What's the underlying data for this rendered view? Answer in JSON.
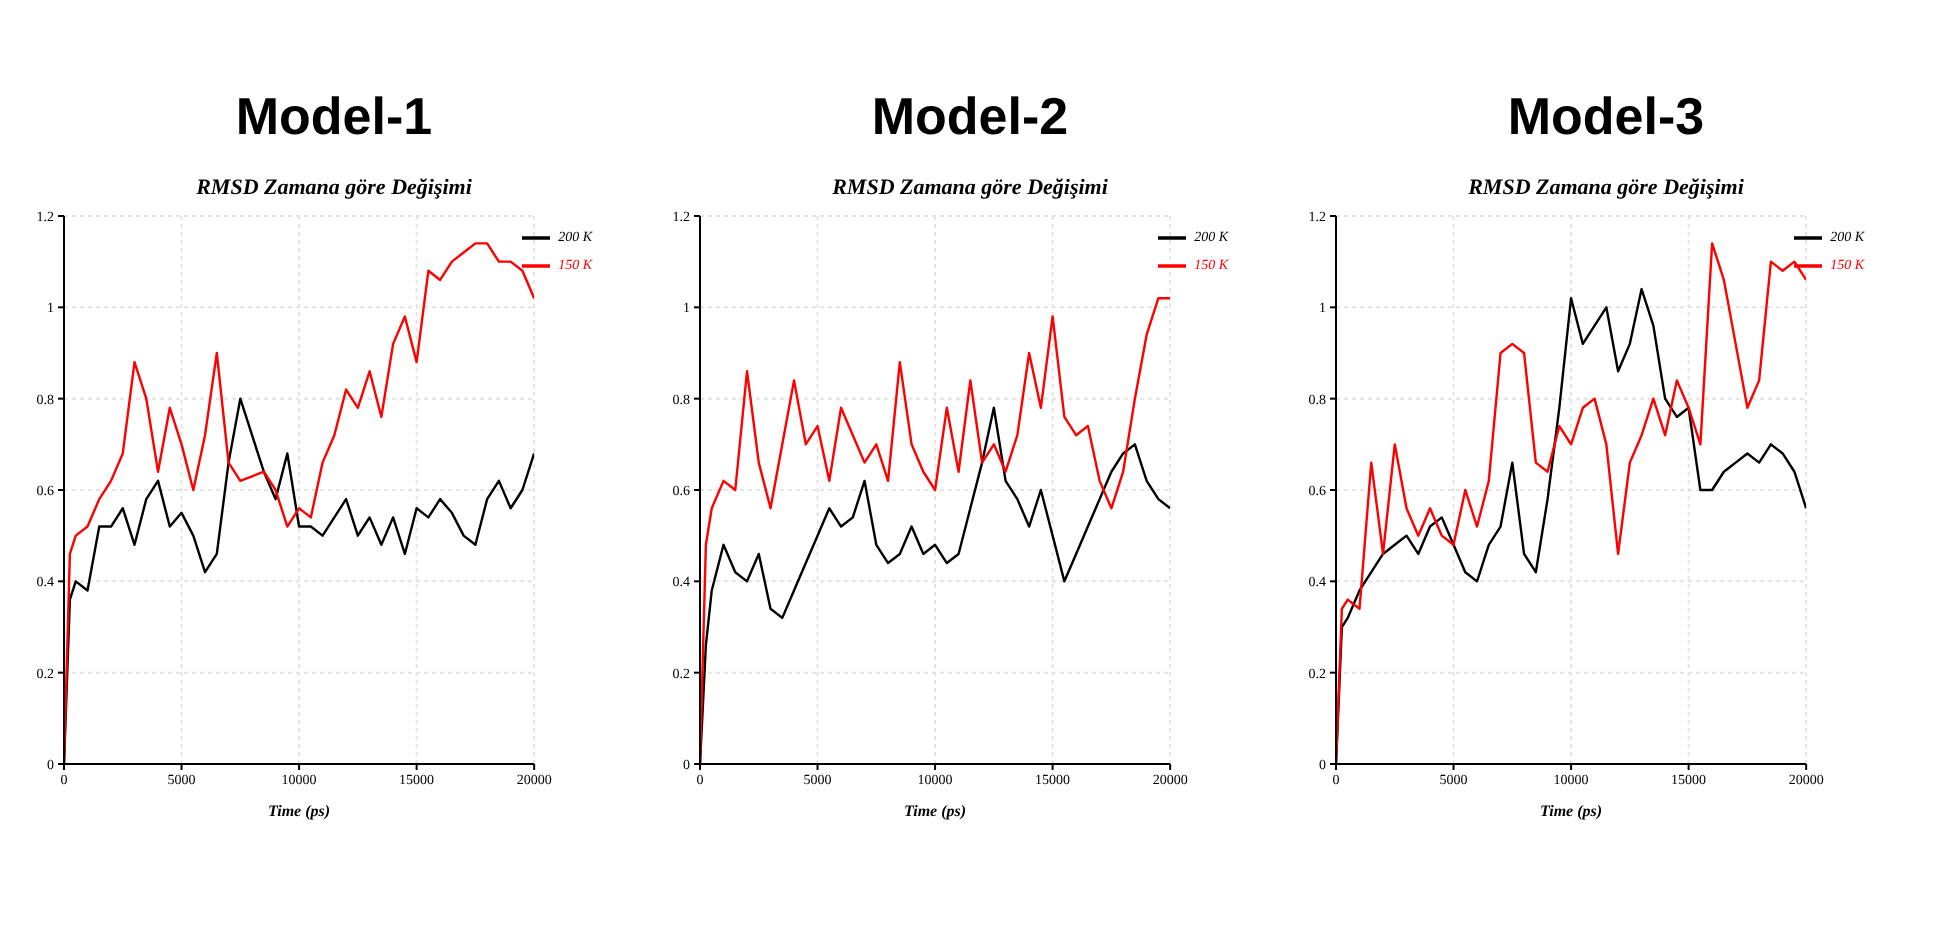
{
  "chart_data": [
    {
      "type": "line",
      "title": "Model-1",
      "subtitle": "RMSD Zamana göre Değişimi",
      "xlabel": "Time (ps)",
      "x": [
        0,
        250,
        500,
        1000,
        1500,
        2000,
        2500,
        3000,
        3500,
        4000,
        4500,
        5000,
        5500,
        6000,
        6500,
        7000,
        7500,
        8000,
        8500,
        9000,
        9500,
        10000,
        10500,
        11000,
        11500,
        12000,
        12500,
        13000,
        13500,
        14000,
        14500,
        15000,
        15500,
        16000,
        16500,
        17000,
        17500,
        18000,
        18500,
        19000,
        19500,
        20000
      ],
      "xlim": [
        0,
        20000
      ],
      "xticks": [
        0,
        5000,
        10000,
        15000,
        20000
      ],
      "ylim": [
        0,
        1.2
      ],
      "yticks": [
        0,
        0.2,
        0.4,
        0.6,
        0.8,
        1,
        1.2
      ],
      "grid": true,
      "legend": "top right",
      "marker": "none",
      "line_style": "solid",
      "series": [
        {
          "name": "200 K",
          "color": "#000000",
          "values": [
            0,
            0.36,
            0.4,
            0.38,
            0.52,
            0.52,
            0.56,
            0.48,
            0.58,
            0.62,
            0.52,
            0.55,
            0.5,
            0.42,
            0.46,
            0.66,
            0.8,
            0.72,
            0.64,
            0.58,
            0.68,
            0.52,
            0.52,
            0.5,
            0.54,
            0.58,
            0.5,
            0.54,
            0.48,
            0.54,
            0.46,
            0.56,
            0.54,
            0.58,
            0.55,
            0.5,
            0.48,
            0.58,
            0.62,
            0.56,
            0.6,
            0.68
          ]
        },
        {
          "name": "150 K",
          "color": "#ff0000",
          "values": [
            0,
            0.46,
            0.5,
            0.52,
            0.58,
            0.62,
            0.68,
            0.88,
            0.8,
            0.64,
            0.78,
            0.7,
            0.6,
            0.72,
            0.9,
            0.66,
            0.62,
            0.63,
            0.64,
            0.6,
            0.52,
            0.56,
            0.54,
            0.66,
            0.72,
            0.82,
            0.78,
            0.86,
            0.76,
            0.92,
            0.98,
            0.88,
            1.08,
            1.06,
            1.1,
            1.12,
            1.14,
            1.14,
            1.1,
            1.1,
            1.08,
            1.02
          ]
        }
      ]
    },
    {
      "type": "line",
      "title": "Model-2",
      "subtitle": "RMSD Zamana göre Değişimi",
      "xlabel": "Time (ps)",
      "x": [
        0,
        250,
        500,
        1000,
        1500,
        2000,
        2500,
        3000,
        3500,
        4000,
        4500,
        5000,
        5500,
        6000,
        6500,
        7000,
        7500,
        8000,
        8500,
        9000,
        9500,
        10000,
        10500,
        11000,
        11500,
        12000,
        12500,
        13000,
        13500,
        14000,
        14500,
        15000,
        15500,
        16000,
        16500,
        17000,
        17500,
        18000,
        18500,
        19000,
        19500,
        20000
      ],
      "xlim": [
        0,
        20000
      ],
      "xticks": [
        0,
        5000,
        10000,
        15000,
        20000
      ],
      "ylim": [
        0,
        1.2
      ],
      "yticks": [
        0,
        0.2,
        0.4,
        0.6,
        0.8,
        1,
        1.2
      ],
      "grid": true,
      "legend": "top right",
      "marker": "none",
      "line_style": "solid",
      "series": [
        {
          "name": "200 K",
          "color": "#000000",
          "values": [
            0,
            0.26,
            0.38,
            0.48,
            0.42,
            0.4,
            0.46,
            0.34,
            0.32,
            0.38,
            0.44,
            0.5,
            0.56,
            0.52,
            0.54,
            0.62,
            0.48,
            0.44,
            0.46,
            0.52,
            0.46,
            0.48,
            0.44,
            0.46,
            0.56,
            0.66,
            0.78,
            0.62,
            0.58,
            0.52,
            0.6,
            0.5,
            0.4,
            0.46,
            0.52,
            0.58,
            0.64,
            0.68,
            0.7,
            0.62,
            0.58,
            0.56
          ]
        },
        {
          "name": "150 K",
          "color": "#ff0000",
          "values": [
            0,
            0.48,
            0.56,
            0.62,
            0.6,
            0.86,
            0.66,
            0.56,
            0.7,
            0.84,
            0.7,
            0.74,
            0.62,
            0.78,
            0.72,
            0.66,
            0.7,
            0.62,
            0.88,
            0.7,
            0.64,
            0.6,
            0.78,
            0.64,
            0.84,
            0.66,
            0.7,
            0.64,
            0.72,
            0.9,
            0.78,
            0.98,
            0.76,
            0.72,
            0.74,
            0.62,
            0.56,
            0.64,
            0.8,
            0.94,
            1.02,
            1.02
          ]
        }
      ]
    },
    {
      "type": "line",
      "title": "Model-3",
      "subtitle": "RMSD Zamana göre Değişimi",
      "xlabel": "Time (ps)",
      "x": [
        0,
        250,
        500,
        1000,
        1500,
        2000,
        2500,
        3000,
        3500,
        4000,
        4500,
        5000,
        5500,
        6000,
        6500,
        7000,
        7500,
        8000,
        8500,
        9000,
        9500,
        10000,
        10500,
        11000,
        11500,
        12000,
        12500,
        13000,
        13500,
        14000,
        14500,
        15000,
        15500,
        16000,
        16500,
        17000,
        17500,
        18000,
        18500,
        19000,
        19500,
        20000
      ],
      "xlim": [
        0,
        20000
      ],
      "xticks": [
        0,
        5000,
        10000,
        15000,
        20000
      ],
      "ylim": [
        0,
        1.2
      ],
      "yticks": [
        0,
        0.2,
        0.4,
        0.6,
        0.8,
        1,
        1.2
      ],
      "grid": true,
      "legend": "top right",
      "marker": "none",
      "line_style": "solid",
      "series": [
        {
          "name": "200 K",
          "color": "#000000",
          "values": [
            0,
            0.3,
            0.32,
            0.38,
            0.42,
            0.46,
            0.48,
            0.5,
            0.46,
            0.52,
            0.54,
            0.48,
            0.42,
            0.4,
            0.48,
            0.52,
            0.66,
            0.46,
            0.42,
            0.58,
            0.78,
            1.02,
            0.92,
            0.96,
            1,
            0.86,
            0.92,
            1.04,
            0.96,
            0.8,
            0.76,
            0.78,
            0.6,
            0.6,
            0.64,
            0.66,
            0.68,
            0.66,
            0.7,
            0.68,
            0.64,
            0.56
          ]
        },
        {
          "name": "150 K",
          "color": "#ff0000",
          "values": [
            0,
            0.34,
            0.36,
            0.34,
            0.66,
            0.46,
            0.7,
            0.56,
            0.5,
            0.56,
            0.5,
            0.48,
            0.6,
            0.52,
            0.62,
            0.9,
            0.92,
            0.9,
            0.66,
            0.64,
            0.74,
            0.7,
            0.78,
            0.8,
            0.7,
            0.46,
            0.66,
            0.72,
            0.8,
            0.72,
            0.84,
            0.78,
            0.7,
            1.14,
            1.06,
            0.92,
            0.78,
            0.84,
            1.1,
            1.08,
            1.1,
            1.06
          ]
        }
      ]
    }
  ]
}
